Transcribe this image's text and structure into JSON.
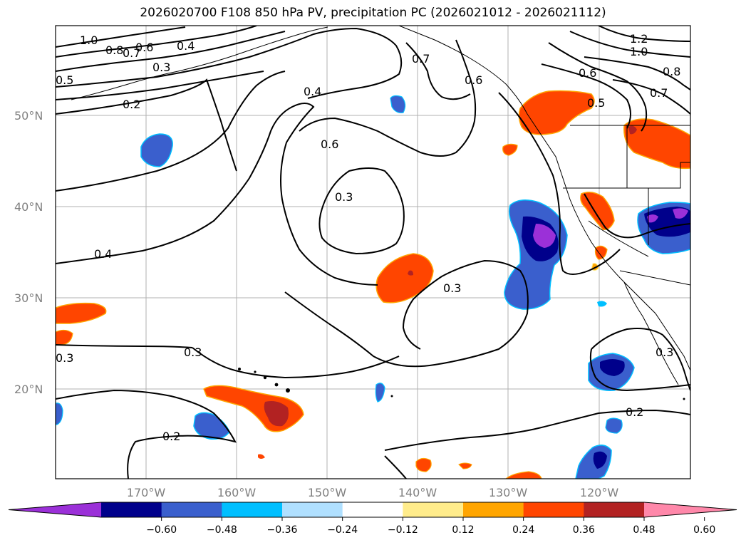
{
  "title": "2026020700 F108 850 hPa PV, precipitation PC (2026021012 - 2026021112)",
  "axes": {
    "lat_labels": [
      "50°N",
      "40°N",
      "30°N",
      "20°N"
    ],
    "lon_labels": [
      "170°W",
      "160°W",
      "150°W",
      "140°W",
      "130°W",
      "120°W"
    ]
  },
  "contour_labels": [
    {
      "text": "1.0",
      "name": "label-1-0-nw"
    },
    {
      "text": "0.8",
      "name": "label-0-8-nw"
    },
    {
      "text": "0.7",
      "name": "label-0-7-nw"
    },
    {
      "text": "0.6",
      "name": "label-0-6-nw"
    },
    {
      "text": "0.4",
      "name": "label-0-4-nw"
    },
    {
      "text": "0.3",
      "name": "label-0-3-nw"
    },
    {
      "text": "0.5",
      "name": "label-0-5-w"
    },
    {
      "text": "0.2",
      "name": "label-0-2-nw"
    },
    {
      "text": "0.4",
      "name": "label-0-4-n"
    },
    {
      "text": "0.6",
      "name": "label-0-6-center"
    },
    {
      "text": "0.3",
      "name": "label-0-3-center"
    },
    {
      "text": "0.4",
      "name": "label-0-4-w"
    },
    {
      "text": "0.3",
      "name": "label-0-3-sw"
    },
    {
      "text": "0.3",
      "name": "label-0-3-s"
    },
    {
      "text": "0.3",
      "name": "label-0-3-east"
    },
    {
      "text": "0.2",
      "name": "label-0-2-s"
    },
    {
      "text": "0.2",
      "name": "label-0-2-se"
    },
    {
      "text": "0.7",
      "name": "label-0-7-ne"
    },
    {
      "text": "0.6",
      "name": "label-0-6-ne"
    },
    {
      "text": "1.2",
      "name": "label-1-2-ne"
    },
    {
      "text": "1.0",
      "name": "label-1-0-ne"
    },
    {
      "text": "0.6",
      "name": "label-0-6-ne2"
    },
    {
      "text": "0.8",
      "name": "label-0-8-ne"
    },
    {
      "text": "0.7",
      "name": "label-0-7-ne2"
    },
    {
      "text": "0.5",
      "name": "label-0-5-ne"
    },
    {
      "text": "0.3",
      "name": "label-0-3-se"
    }
  ],
  "colorbar": {
    "ticks": [
      "−0.60",
      "−0.48",
      "−0.36",
      "−0.24",
      "−0.12",
      "0.12",
      "0.24",
      "0.36",
      "0.48",
      "0.60"
    ],
    "colors": [
      "#9b30d8",
      "#00008b",
      "#3a5fcd",
      "#00bfff",
      "#b0e0ff",
      "#ffffff",
      "#ffec8b",
      "#ffa500",
      "#ff4500",
      "#b22222",
      "#ff88aa"
    ]
  },
  "palette": {
    "neg_outer": "#3a5fcd",
    "neg_mid": "#00008b",
    "neg_core": "#9b30d8",
    "neg_edge": "#00bfff",
    "pos_outer": "#ff4500",
    "pos_mid": "#b22222",
    "pos_edge": "#ffa500",
    "pos_rim": "#ffec8b"
  }
}
